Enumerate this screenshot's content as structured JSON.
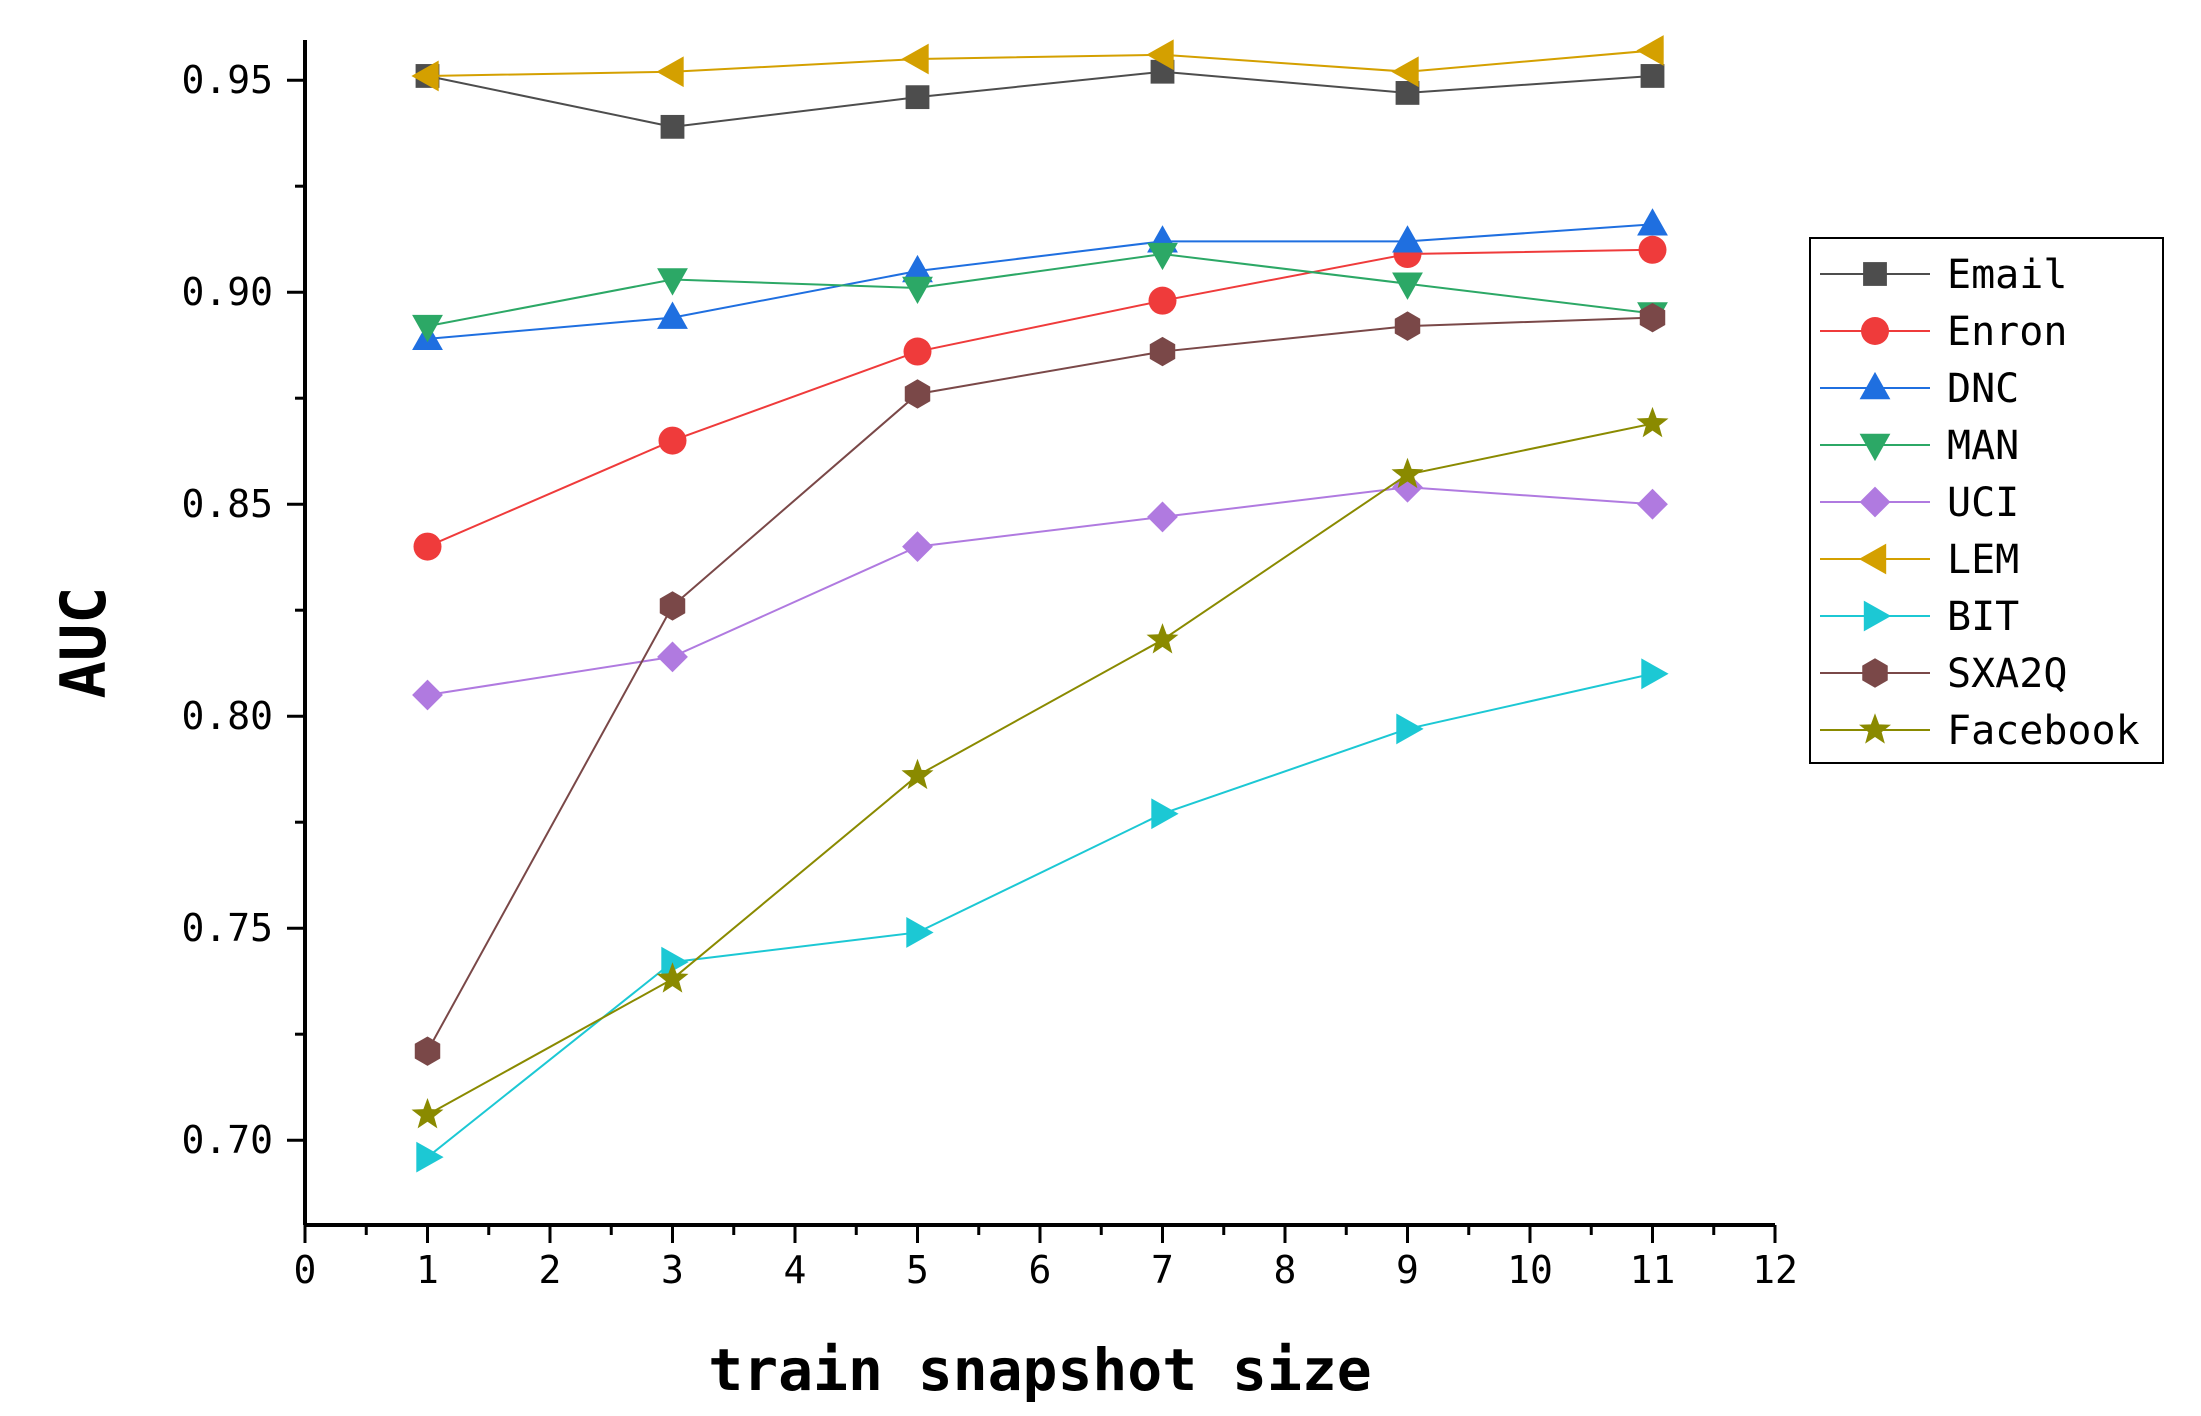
{
  "chart_data": {
    "type": "line",
    "title": "",
    "xlabel": "train snapshot size",
    "ylabel": "AUC",
    "xlim": [
      0,
      12
    ],
    "ylim": [
      0.68,
      0.96
    ],
    "x_ticks": [
      0,
      1,
      2,
      3,
      4,
      5,
      6,
      7,
      8,
      9,
      10,
      11,
      12
    ],
    "y_ticks": [
      0.7,
      0.75,
      0.8,
      0.85,
      0.9,
      0.95
    ],
    "y_tick_labels": [
      "0.70",
      "0.75",
      "0.80",
      "0.85",
      "0.90",
      "0.95"
    ],
    "grid": false,
    "legend_position": "right",
    "x": [
      1,
      3,
      5,
      7,
      9,
      11
    ],
    "series": [
      {
        "name": "Email",
        "marker": "square",
        "color": "#4d4d4d",
        "values": [
          0.951,
          0.939,
          0.946,
          0.952,
          0.947,
          0.951
        ]
      },
      {
        "name": "Enron",
        "marker": "circle",
        "color": "#ef3b3b",
        "values": [
          0.84,
          0.865,
          0.886,
          0.898,
          0.909,
          0.91
        ]
      },
      {
        "name": "DNC",
        "marker": "triangle-up",
        "color": "#1f6fe0",
        "values": [
          0.889,
          0.894,
          0.905,
          0.912,
          0.912,
          0.916
        ]
      },
      {
        "name": "MAN",
        "marker": "triangle-down",
        "color": "#2ca866",
        "values": [
          0.892,
          0.903,
          0.901,
          0.909,
          0.902,
          0.895
        ]
      },
      {
        "name": "UCI",
        "marker": "diamond",
        "color": "#b07ae0",
        "values": [
          0.805,
          0.814,
          0.84,
          0.847,
          0.854,
          0.85
        ]
      },
      {
        "name": "LEM",
        "marker": "triangle-left",
        "color": "#d4a000",
        "values": [
          0.951,
          0.952,
          0.955,
          0.956,
          0.952,
          0.957
        ]
      },
      {
        "name": "BIT",
        "marker": "triangle-right",
        "color": "#1cc8d4",
        "values": [
          0.696,
          0.742,
          0.749,
          0.777,
          0.797,
          0.81
        ]
      },
      {
        "name": "SXA2Q",
        "marker": "hexagon",
        "color": "#7a4848",
        "values": [
          0.721,
          0.826,
          0.876,
          0.886,
          0.892,
          0.894
        ]
      },
      {
        "name": "Facebook",
        "marker": "star",
        "color": "#8a8a00",
        "values": [
          0.706,
          0.738,
          0.786,
          0.818,
          0.857,
          0.869
        ]
      }
    ]
  }
}
